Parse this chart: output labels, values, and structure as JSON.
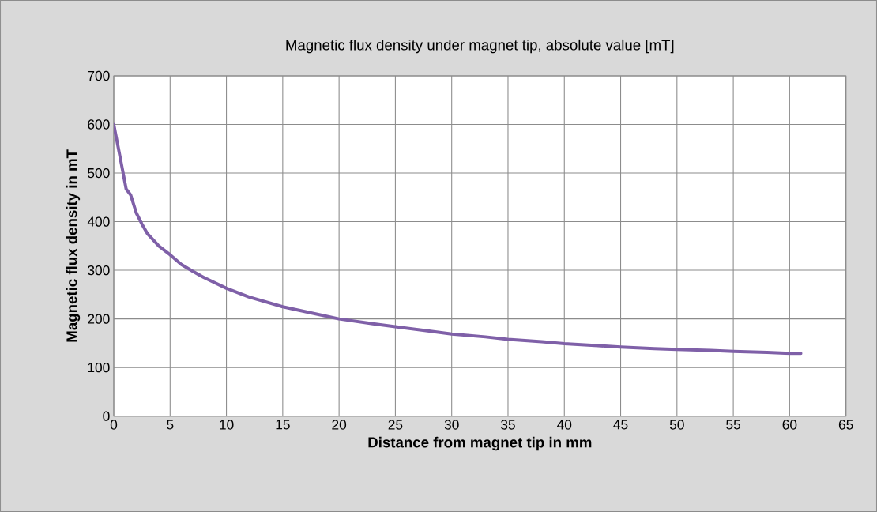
{
  "chart_data": {
    "type": "line",
    "title": "Magnetic flux density under magnet tip, absolute value [mT]",
    "xlabel": "Distance from magnet tip in mm",
    "ylabel": "Magnetic flux density in mT",
    "xlim": [
      0,
      65
    ],
    "xticks": [
      0,
      5,
      10,
      15,
      20,
      25,
      30,
      35,
      40,
      45,
      50,
      55,
      60,
      65
    ],
    "ylim": [
      0,
      700
    ],
    "yticks": [
      0,
      100,
      200,
      300,
      400,
      500,
      600,
      700
    ],
    "grid": true,
    "marker": "none",
    "line_style": "solid",
    "series": [
      {
        "color": "#7f60a8",
        "x": [
          0,
          0.5,
          1.1,
          1.5,
          2.0,
          2.5,
          3.0,
          4.0,
          5.0,
          6.0,
          7.0,
          8.0,
          10.0,
          12.0,
          15.0,
          18.0,
          20.0,
          23.0,
          25.0,
          28.0,
          30.0,
          33.0,
          35.0,
          38.0,
          40.0,
          43.0,
          45.0,
          48.0,
          50.0,
          53.0,
          55.0,
          58.0,
          60.0,
          61.0
        ],
        "values": [
          600,
          540,
          467,
          455,
          418,
          395,
          375,
          350,
          332,
          312,
          298,
          285,
          263,
          245,
          225,
          210,
          200,
          190,
          184,
          175,
          169,
          163,
          158,
          153,
          149,
          145,
          142,
          139,
          137,
          135,
          133,
          131,
          129,
          129
        ]
      }
    ]
  }
}
